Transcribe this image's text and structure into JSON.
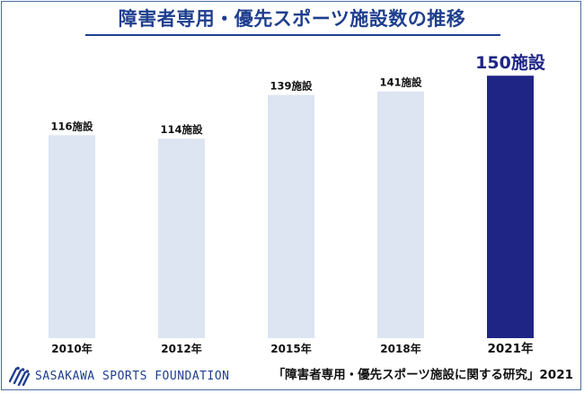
{
  "chart_data": {
    "type": "bar",
    "title": "障害者専用・優先スポーツ施設数の推移",
    "categories": [
      "2010年",
      "2012年",
      "2015年",
      "2018年",
      "2021年"
    ],
    "values": [
      116,
      114,
      139,
      141,
      150
    ],
    "data_labels": [
      "116施設",
      "114施設",
      "139施設",
      "141施設",
      "150施設"
    ],
    "highlight_index": 4,
    "ylim": [
      0,
      165
    ],
    "xlabel": "",
    "ylabel": "",
    "grid": false,
    "colors": {
      "bar": "#dde4f2",
      "highlight": "#1f2585",
      "label": "#111111",
      "highlight_label": "#1f2585"
    }
  },
  "footer": {
    "logo_text": "SASAKAWA SPORTS FOUNDATION",
    "source": "「障害者専用・優先スポーツ施設に関する研究」2021"
  }
}
